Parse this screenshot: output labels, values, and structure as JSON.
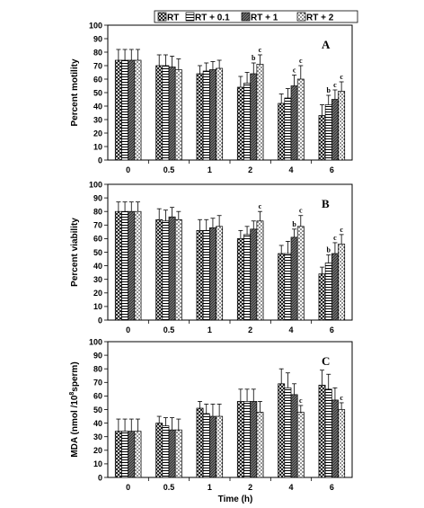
{
  "legend": {
    "items": [
      "RT",
      "RT + 0.1",
      "RT + 1",
      "RT + 2"
    ]
  },
  "shared_x_label": "Time (h)",
  "chart_data": [
    {
      "type": "bar",
      "panel_label": "A",
      "ylabel": "Percent motility",
      "ylim": [
        0,
        100
      ],
      "yticks": [
        0,
        10,
        20,
        30,
        40,
        50,
        60,
        70,
        80,
        90,
        100
      ],
      "categories": [
        "0",
        "0.5",
        "1",
        "2",
        "4",
        "6"
      ],
      "series": [
        {
          "name": "RT",
          "values": [
            74,
            70,
            64,
            54,
            42,
            33
          ],
          "errors": [
            8,
            8,
            6,
            8,
            7,
            8
          ]
        },
        {
          "name": "RT + 0.1",
          "values": [
            74,
            70,
            66,
            57,
            46,
            41
          ],
          "errors": [
            8,
            8,
            6,
            8,
            7,
            7
          ]
        },
        {
          "name": "RT + 1",
          "values": [
            74,
            69,
            67,
            64,
            55,
            45
          ],
          "errors": [
            8,
            8,
            6,
            8,
            8,
            7
          ]
        },
        {
          "name": "RT + 2",
          "values": [
            74,
            67,
            68,
            71,
            60,
            51
          ],
          "errors": [
            8,
            8,
            6,
            7,
            10,
            7
          ]
        }
      ],
      "annotations": [
        {
          "category": "2",
          "series": "RT + 1",
          "text": "b"
        },
        {
          "category": "2",
          "series": "RT + 2",
          "text": "c"
        },
        {
          "category": "4",
          "series": "RT + 1",
          "text": "c"
        },
        {
          "category": "4",
          "series": "RT + 2",
          "text": "c"
        },
        {
          "category": "6",
          "series": "RT + 0.1",
          "text": "b"
        },
        {
          "category": "6",
          "series": "RT + 1",
          "text": "c"
        },
        {
          "category": "6",
          "series": "RT + 2",
          "text": "c"
        }
      ]
    },
    {
      "type": "bar",
      "panel_label": "B",
      "ylabel": "Percent viability",
      "ylim": [
        0,
        100
      ],
      "yticks": [
        0,
        10,
        20,
        30,
        40,
        50,
        60,
        70,
        80,
        90,
        100
      ],
      "categories": [
        "0",
        "0.5",
        "1",
        "2",
        "4",
        "6"
      ],
      "series": [
        {
          "name": "RT",
          "values": [
            80,
            74,
            66,
            60,
            49,
            34
          ],
          "errors": [
            7,
            8,
            8,
            6,
            6,
            5
          ]
        },
        {
          "name": "RT + 0.1",
          "values": [
            80,
            73,
            66,
            63,
            49,
            42
          ],
          "errors": [
            7,
            8,
            8,
            6,
            9,
            6
          ]
        },
        {
          "name": "RT + 1",
          "values": [
            80,
            76,
            68,
            67,
            61,
            49
          ],
          "errors": [
            7,
            7,
            7,
            6,
            6,
            8
          ]
        },
        {
          "name": "RT + 2",
          "values": [
            80,
            74,
            69,
            73,
            69,
            56
          ],
          "errors": [
            7,
            6,
            8,
            7,
            8,
            7
          ]
        }
      ],
      "annotations": [
        {
          "category": "2",
          "series": "RT + 2",
          "text": "c"
        },
        {
          "category": "4",
          "series": "RT + 1",
          "text": "b"
        },
        {
          "category": "4",
          "series": "RT + 2",
          "text": "c"
        },
        {
          "category": "6",
          "series": "RT + 0.1",
          "text": "b"
        },
        {
          "category": "6",
          "series": "RT + 1",
          "text": "c"
        },
        {
          "category": "6",
          "series": "RT + 2",
          "text": "c"
        }
      ]
    },
    {
      "type": "bar",
      "panel_label": "C",
      "ylabel": "MDA (nmol /10",
      "ylabel_superscript": "8",
      "ylabel_suffix": "sperm)",
      "xlabel": "Time (h)",
      "ylim": [
        0,
        100
      ],
      "yticks": [
        0,
        10,
        20,
        30,
        40,
        50,
        60,
        70,
        80,
        90,
        100
      ],
      "categories": [
        "0",
        "0.5",
        "1",
        "2",
        "4",
        "6"
      ],
      "series": [
        {
          "name": "RT",
          "values": [
            34,
            40,
            51,
            56,
            69,
            68
          ],
          "errors": [
            9,
            5,
            5,
            9,
            11,
            11
          ]
        },
        {
          "name": "RT + 0.1",
          "values": [
            34,
            38,
            47,
            56,
            66,
            65
          ],
          "errors": [
            9,
            6,
            7,
            9,
            11,
            11
          ]
        },
        {
          "name": "RT + 1",
          "values": [
            34,
            35,
            45,
            56,
            61,
            57
          ],
          "errors": [
            9,
            9,
            9,
            9,
            8,
            9
          ]
        },
        {
          "name": "RT + 2",
          "values": [
            34,
            35,
            45,
            48,
            48,
            50
          ],
          "errors": [
            9,
            8,
            9,
            8,
            5,
            5
          ]
        }
      ],
      "annotations": [
        {
          "category": "4",
          "series": "RT + 2",
          "text": "c"
        },
        {
          "category": "6",
          "series": "RT + 2",
          "text": "c"
        }
      ]
    }
  ]
}
